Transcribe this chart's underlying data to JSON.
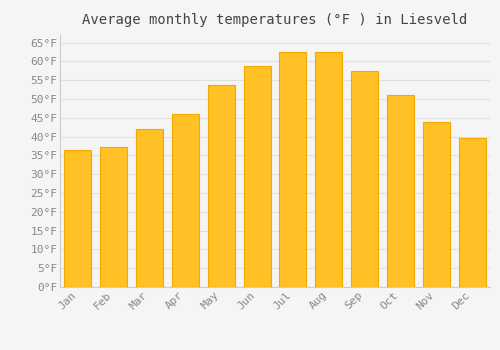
{
  "title": "Average monthly temperatures (°F ) in Liesveld",
  "months": [
    "Jan",
    "Feb",
    "Mar",
    "Apr",
    "May",
    "Jun",
    "Jul",
    "Aug",
    "Sep",
    "Oct",
    "Nov",
    "Dec"
  ],
  "values": [
    36.5,
    37.2,
    42.0,
    46.0,
    53.8,
    58.8,
    62.5,
    62.5,
    57.5,
    51.0,
    43.8,
    39.5
  ],
  "bar_color": "#FFC125",
  "bar_edge_color": "#F5A800",
  "background_color": "#f5f5f5",
  "grid_color": "#e0e0e0",
  "ylim": [
    0,
    67
  ],
  "yticks": [
    0,
    5,
    10,
    15,
    20,
    25,
    30,
    35,
    40,
    45,
    50,
    55,
    60,
    65
  ],
  "title_fontsize": 10,
  "tick_fontsize": 8,
  "title_color": "#444444",
  "tick_color": "#888888",
  "font_family": "monospace"
}
